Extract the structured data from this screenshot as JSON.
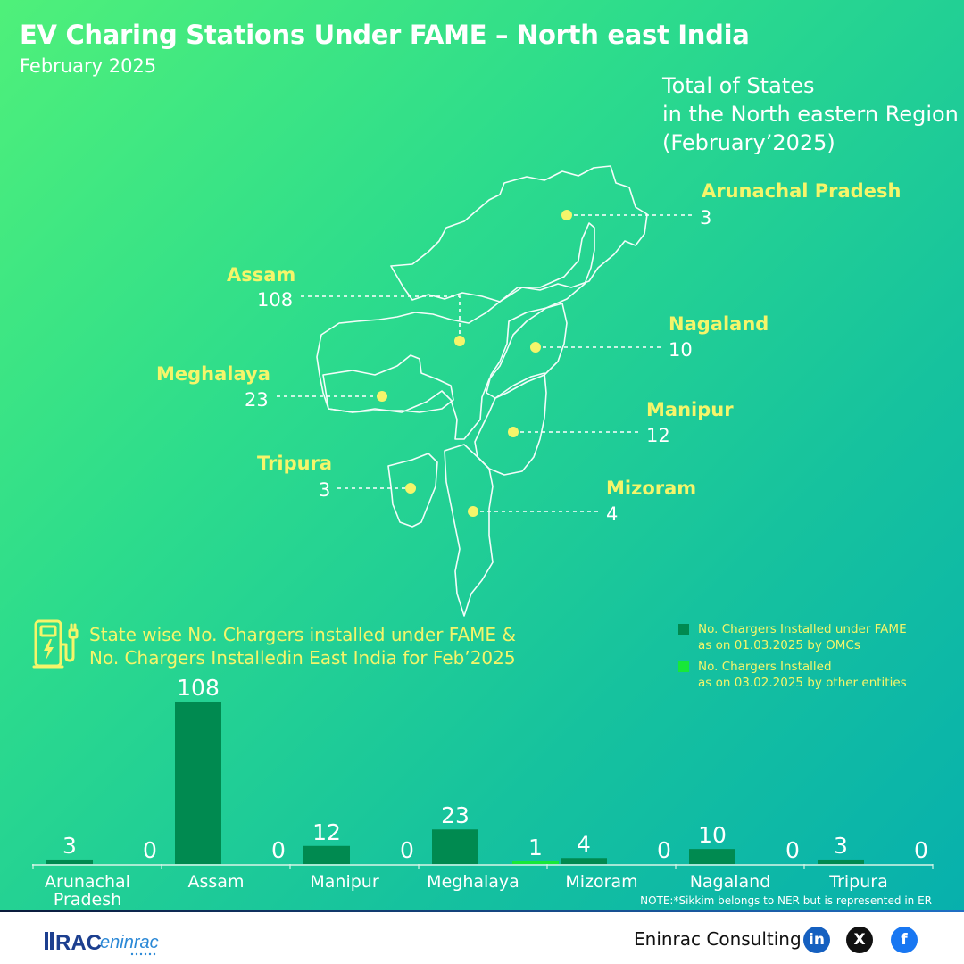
{
  "header": {
    "title": "EV Charing Stations Under FAME – North east India",
    "subtitle": "February 2025"
  },
  "map": {
    "title_lines": [
      "Total of States",
      "in the North eastern Region",
      "(February’2025)"
    ],
    "states": [
      {
        "name": "Arunachal Pradesh",
        "value": "3"
      },
      {
        "name": "Assam",
        "value": "108"
      },
      {
        "name": "Nagaland",
        "value": "10"
      },
      {
        "name": "Meghalaya",
        "value": "23"
      },
      {
        "name": "Manipur",
        "value": "12"
      },
      {
        "name": "Tripura",
        "value": "3"
      },
      {
        "name": "Mizoram",
        "value": "4"
      }
    ]
  },
  "chart_section": {
    "title_lines": [
      "State wise No. Chargers installed under FAME &",
      "No. Chargers Installedin East India for Feb’2025"
    ]
  },
  "colors": {
    "fame": "#008a50",
    "other": "#17e838",
    "label_yellow": "#f5f56a"
  },
  "legend": {
    "fame_line1": "No. Chargers Installed under FAME",
    "fame_line2": "as on 01.03.2025 by OMCs",
    "other_line1": "No. Chargers Installed",
    "other_line2": "as on 03.02.2025 by other entities"
  },
  "chart_data": {
    "type": "bar",
    "categories": [
      "Arunachal Pradesh",
      "Assam",
      "Manipur",
      "Meghalaya",
      "Mizoram",
      "Nagaland",
      "Tripura"
    ],
    "category_lines": [
      [
        "Arunachal",
        "Pradesh"
      ],
      [
        "Assam"
      ],
      [
        "Manipur"
      ],
      [
        "Meghalaya"
      ],
      [
        "Mizoram"
      ],
      [
        "Nagaland"
      ],
      [
        "Tripura"
      ]
    ],
    "series": [
      {
        "name": "No. Chargers Installed under FAME as on 01.03.2025 by OMCs",
        "values": [
          3,
          108,
          12,
          23,
          4,
          10,
          3
        ]
      },
      {
        "name": "No. Chargers Installed as on 03.02.2025 by other entities",
        "values": [
          0,
          0,
          0,
          1,
          0,
          0,
          0
        ]
      }
    ],
    "ylim": [
      0,
      108
    ],
    "grid": false,
    "legend_position": "top-right"
  },
  "note": "NOTE:*Sikkim belongs to NER but is represented in ER",
  "footer": {
    "brand": "Eninrac Consulting",
    "logo_text": "RAC",
    "logo_sub": "eninrac",
    "social": [
      "in",
      "X",
      "f"
    ]
  }
}
